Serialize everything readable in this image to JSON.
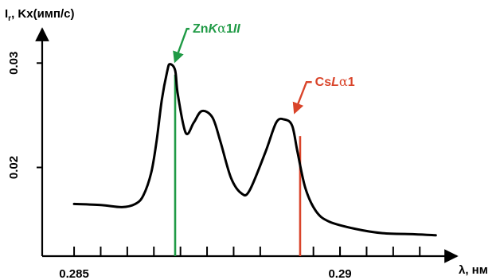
{
  "chart_data": {
    "type": "line",
    "ylabel": "I",
    "ylabel_sub": "r",
    "ylabel_rest": ", Kx(имп/с)",
    "xlabel": "λ, нм",
    "xlim": [
      0.2844,
      0.2922
    ],
    "ylim": [
      0.0115,
      0.0333
    ],
    "x_ticks": [
      0.285,
      0.29
    ],
    "x_tick_labels": [
      "0.285",
      "0.29"
    ],
    "x_minor_ticks": [
      0.2855,
      0.286,
      0.2865,
      0.287,
      0.2875,
      0.288,
      0.2885,
      0.2895,
      0.29,
      0.2905,
      0.291,
      0.2915
    ],
    "y_ticks": [
      0.02,
      0.03
    ],
    "y_tick_labels": [
      "0.02",
      "0.03"
    ],
    "grid": false,
    "series": [
      {
        "name": "",
        "color": "#000000",
        "x": [
          0.285,
          0.2855,
          0.2859,
          0.28615,
          0.2863,
          0.28645,
          0.28655,
          0.28665,
          0.28675,
          0.2868,
          0.2869,
          0.28695,
          0.2871,
          0.28725,
          0.2874,
          0.2876,
          0.28775,
          0.28795,
          0.28815,
          0.2883,
          0.2886,
          0.2888,
          0.28895,
          0.2891,
          0.2892,
          0.28935,
          0.28955,
          0.2898,
          0.2903,
          0.2908,
          0.2914,
          0.2918
        ],
        "y": [
          0.0165,
          0.0164,
          0.0162,
          0.0165,
          0.0173,
          0.0195,
          0.0225,
          0.0265,
          0.0292,
          0.0299,
          0.0293,
          0.027,
          0.0233,
          0.0243,
          0.0254,
          0.0248,
          0.0225,
          0.019,
          0.0175,
          0.0178,
          0.0215,
          0.0243,
          0.0246,
          0.024,
          0.0215,
          0.018,
          0.0158,
          0.0148,
          0.0141,
          0.0137,
          0.0136,
          0.0135
        ]
      }
    ],
    "markers": [
      {
        "label": "ZnKα1II",
        "x": 0.2869,
        "y_top": 0.0289,
        "color": "#1f9a45"
      },
      {
        "label": "CsLα1",
        "x": 0.28925,
        "y_top": 0.023,
        "color": "#d9442a"
      }
    ],
    "annotations": [
      {
        "label_parts": [
          "Zn",
          "K",
          "α",
          "1",
          "II"
        ],
        "color": "#1f9a45",
        "text_x": 0.2872,
        "text_y": 0.0329,
        "arrow_from_x": 0.28715,
        "arrow_from_y": 0.0329,
        "arrow_to_x": 0.2869,
        "arrow_to_y": 0.0302
      },
      {
        "label_parts": [
          "Cs",
          "L",
          "α",
          "1"
        ],
        "color": "#d9442a",
        "text_x": 0.2895,
        "text_y": 0.0278,
        "arrow_from_x": 0.2894,
        "arrow_from_y": 0.0278,
        "arrow_to_x": 0.28915,
        "arrow_to_y": 0.0253
      }
    ]
  }
}
